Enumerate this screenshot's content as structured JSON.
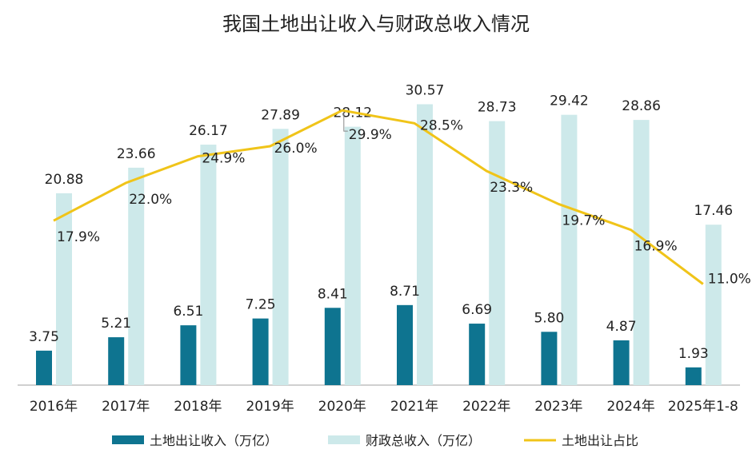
{
  "chart_data": {
    "type": "bar",
    "title": "我国土地出让收入与财政总收入情况",
    "categories": [
      "2016年",
      "2017年",
      "2018年",
      "2019年",
      "2020年",
      "2021年",
      "2022年",
      "2023年",
      "2024年",
      "2025年1-8"
    ],
    "series": [
      {
        "name": "土地出让收入（万亿）",
        "type": "bar",
        "color": "#0e7490",
        "values": [
          3.75,
          5.21,
          6.51,
          7.25,
          8.41,
          8.71,
          6.69,
          5.8,
          4.87,
          1.93
        ],
        "labels": [
          "3.75",
          "5.21",
          "6.51",
          "7.25",
          "8.41",
          "8.71",
          "6.69",
          "5.80",
          "4.87",
          "1.93"
        ]
      },
      {
        "name": "财政总收入（万亿）",
        "type": "bar",
        "color": "#cde9ea",
        "values": [
          20.88,
          23.66,
          26.17,
          27.89,
          28.12,
          30.57,
          28.73,
          29.42,
          28.86,
          17.46
        ],
        "labels": [
          "20.88",
          "23.66",
          "26.17",
          "27.89",
          "28.12",
          "30.57",
          "28.73",
          "29.42",
          "28.86",
          "17.46"
        ]
      },
      {
        "name": "土地出让占比",
        "type": "line",
        "color": "#f0c419",
        "values": [
          17.9,
          22.0,
          24.9,
          26.0,
          29.9,
          28.5,
          23.3,
          19.7,
          16.9,
          11.0
        ],
        "labels": [
          "17.9%",
          "22.0%",
          "24.9%",
          "26.0%",
          "29.9%",
          "28.5%",
          "23.3%",
          "19.7%",
          "16.9%",
          "11.0%"
        ]
      }
    ],
    "legend_position": "bottom",
    "grid": false
  }
}
